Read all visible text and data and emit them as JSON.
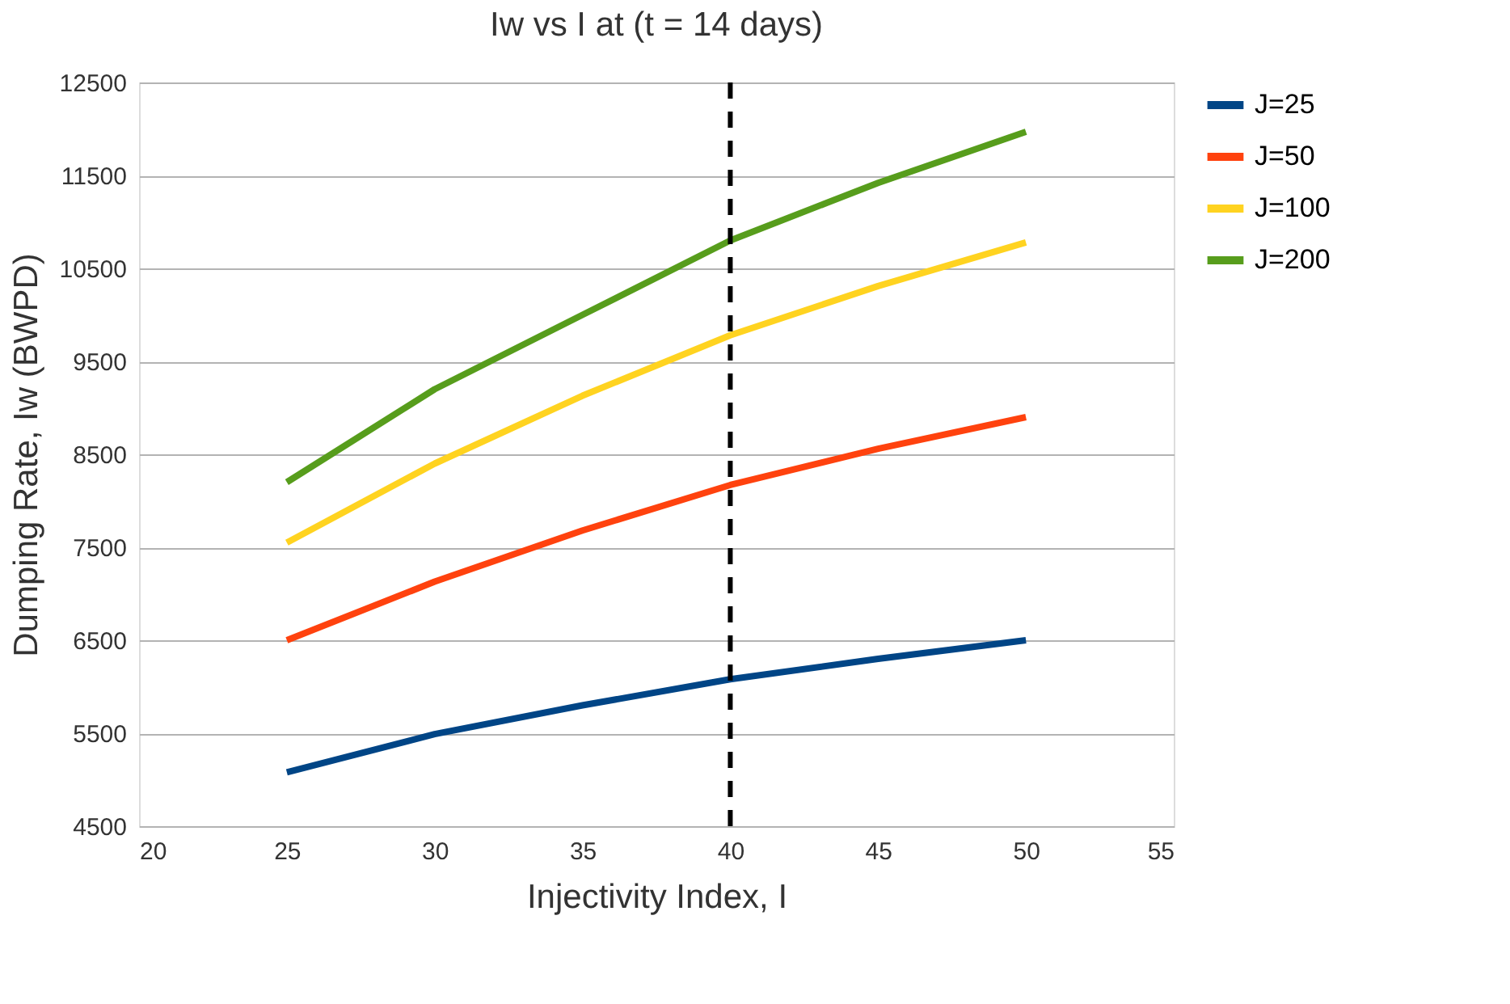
{
  "chart_data": {
    "type": "line",
    "title": "Iw vs I at (t = 14 days)",
    "xlabel": "Injectivity Index, I",
    "ylabel": "Dumping Rate, Iw (BWPD)",
    "x": [
      25,
      30,
      35,
      40,
      45,
      50
    ],
    "series": [
      {
        "name": "J=25",
        "color": "#004586",
        "values": [
          5080,
          5490,
          5800,
          6080,
          6300,
          6500
        ]
      },
      {
        "name": "J=50",
        "color": "#ff420e",
        "values": [
          6500,
          7130,
          7680,
          8170,
          8560,
          8900
        ]
      },
      {
        "name": "J=100",
        "color": "#ffd320",
        "values": [
          7550,
          8400,
          9130,
          9780,
          10310,
          10780
        ]
      },
      {
        "name": "J=200",
        "color": "#579d1c",
        "values": [
          8200,
          9200,
          10000,
          10800,
          11420,
          11970
        ]
      }
    ],
    "xlim": [
      20,
      55
    ],
    "xticks": [
      20,
      25,
      30,
      35,
      40,
      45,
      50,
      55
    ],
    "ylim": [
      4500,
      12500
    ],
    "yticks": [
      4500,
      5500,
      6500,
      7500,
      8500,
      9500,
      10500,
      11500,
      12500
    ],
    "ref_lines": [
      {
        "axis": "x",
        "value": 40,
        "color": "#000000",
        "line_style": "dashed"
      }
    ],
    "grid": "y",
    "legend": "right",
    "marker": "none",
    "line_style": "solid"
  }
}
